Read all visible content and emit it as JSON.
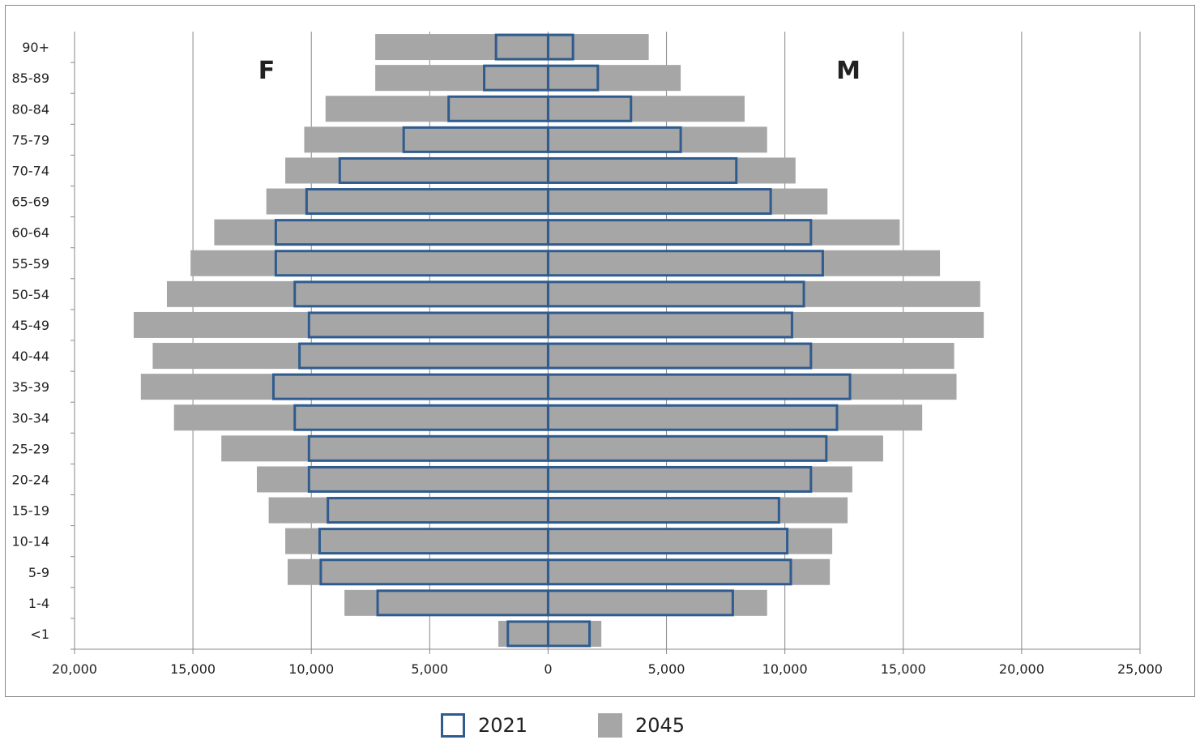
{
  "chart_data": {
    "type": "bar",
    "orientation": "horizontal",
    "layout": "population-pyramid",
    "categories": [
      "<1",
      "1-4",
      "5-9",
      "10-14",
      "15-19",
      "20-24",
      "25-29",
      "30-34",
      "35-39",
      "40-44",
      "45-49",
      "50-54",
      "55-59",
      "60-64",
      "65-69",
      "70-74",
      "75-79",
      "80-84",
      "85-89",
      "90+"
    ],
    "series": [
      {
        "name": "2021",
        "color": "#2f5b8e",
        "style": "outline",
        "female": [
          1700,
          7200,
          9600,
          9650,
          9300,
          10100,
          10100,
          10700,
          11600,
          10500,
          10100,
          10700,
          11500,
          11500,
          10200,
          8800,
          6100,
          4200,
          2700,
          2200
        ],
        "male": [
          1750,
          7800,
          10250,
          10100,
          9750,
          11100,
          11750,
          12200,
          12750,
          11100,
          10300,
          10800,
          11600,
          11100,
          9400,
          7950,
          5600,
          3500,
          2100,
          1050
        ]
      },
      {
        "name": "2045",
        "color": "#a6a6a6",
        "style": "filled",
        "female": [
          2100,
          8600,
          11000,
          11100,
          11800,
          12300,
          13800,
          15800,
          17200,
          16700,
          17500,
          16100,
          15100,
          14100,
          11900,
          11100,
          10300,
          9400,
          7300,
          7300
        ],
        "male": [
          2250,
          9250,
          11900,
          12000,
          12650,
          12850,
          14150,
          15800,
          17250,
          17150,
          18400,
          18250,
          16550,
          14850,
          11800,
          10450,
          9250,
          8300,
          5600,
          4250
        ]
      }
    ],
    "side_labels": {
      "left": "F",
      "right": "M"
    },
    "x_ticks": [
      "20,000",
      "15,000",
      "10,000",
      "5,000",
      "0",
      "5,000",
      "10,000",
      "15,000",
      "20,000",
      "25,000"
    ],
    "xlim": [
      -20000,
      25000
    ],
    "grid": "vertical",
    "legend_position": "bottom"
  }
}
